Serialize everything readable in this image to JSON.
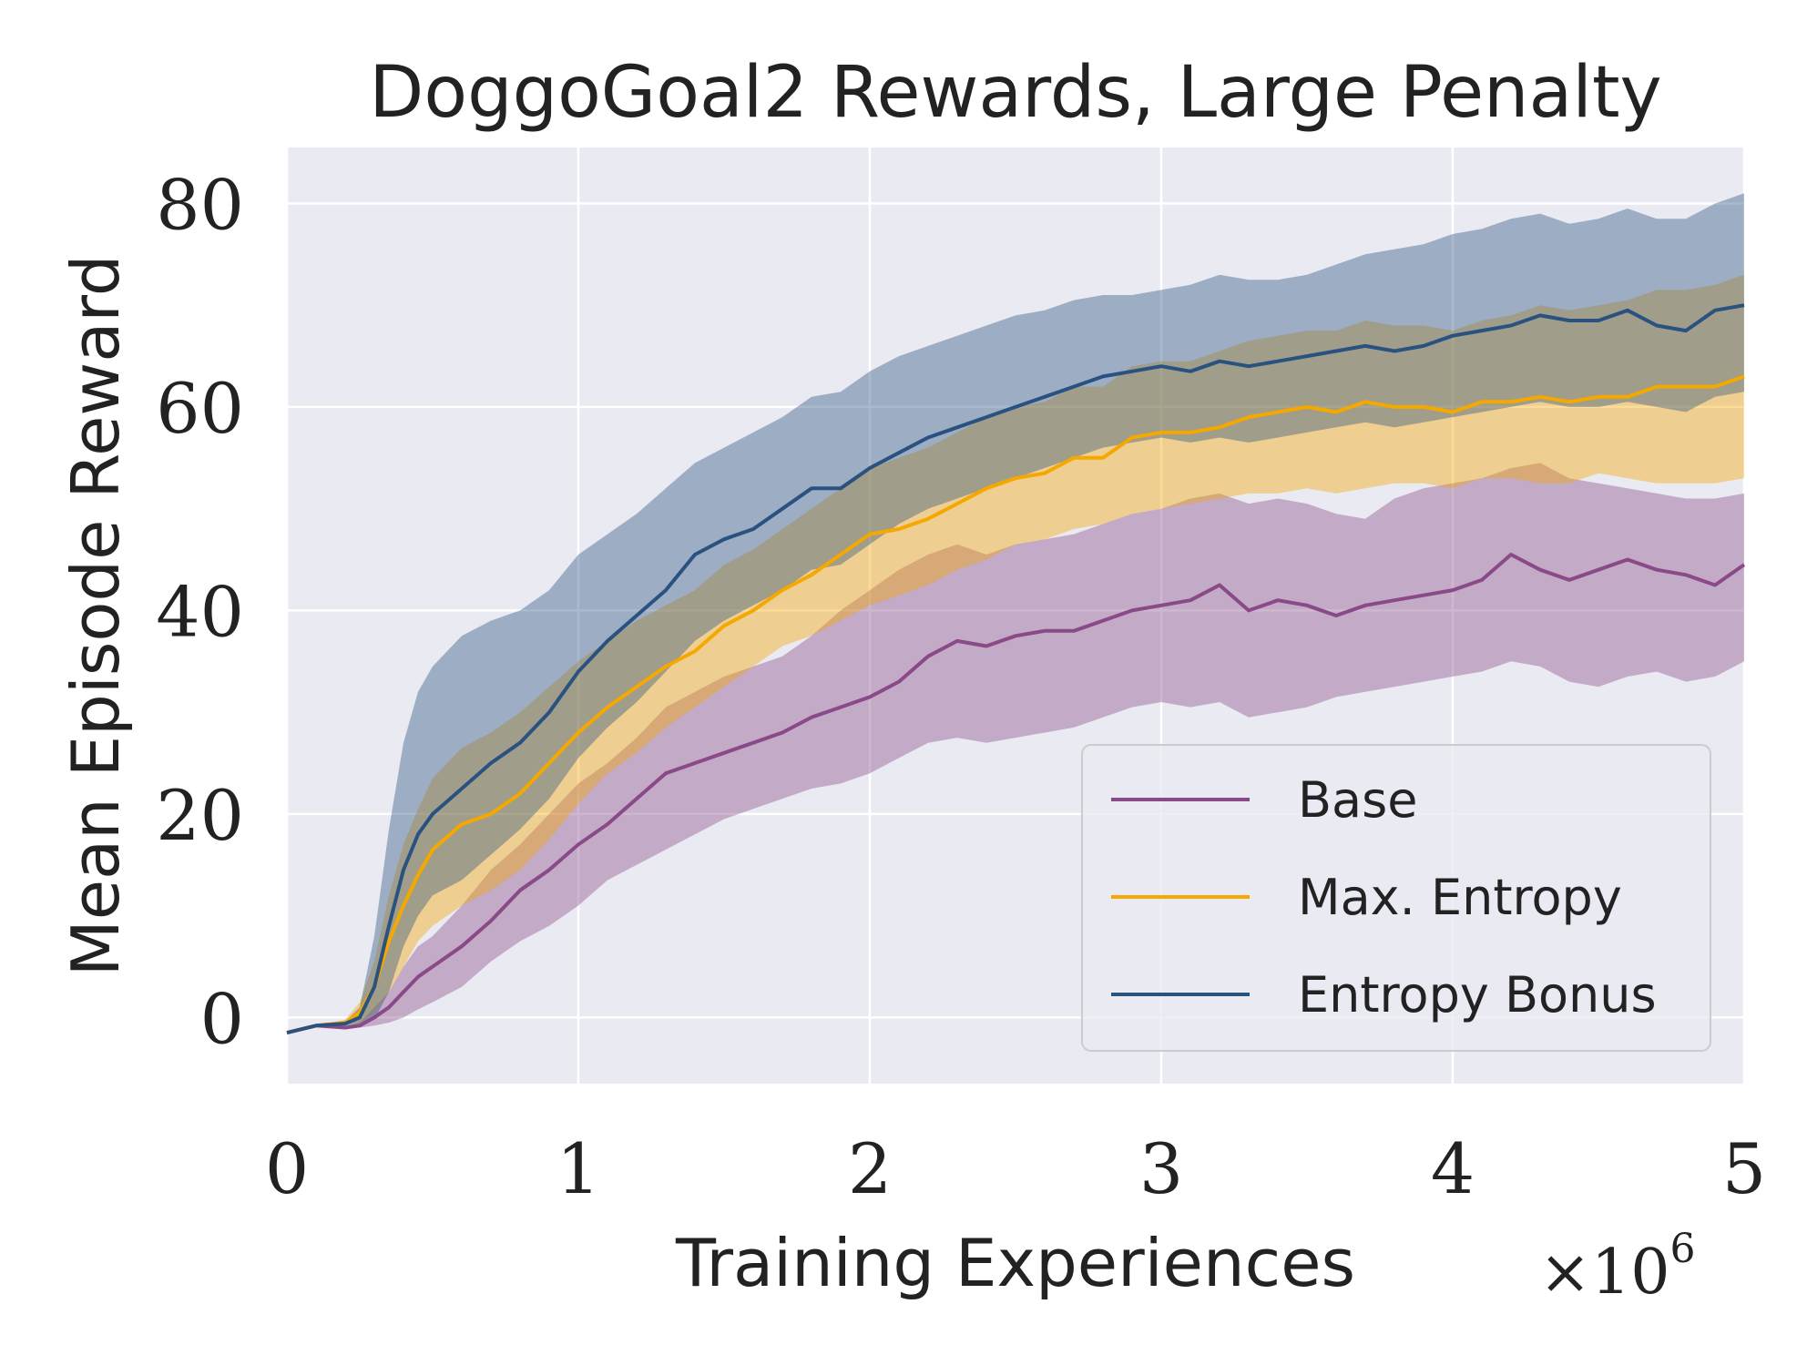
{
  "chart_data": {
    "type": "line",
    "title": "DoggoGoal2 Rewards, Large Penalty",
    "xlabel": "Training Experiences",
    "ylabel": "Mean Episode Reward",
    "x_multiplier_base": "×10",
    "x_multiplier_exp": "6",
    "xlim": [
      0,
      5
    ],
    "ylim": [
      -6.5,
      85.5
    ],
    "xticks": [
      0,
      1,
      2,
      3,
      4,
      5
    ],
    "xtick_labels": [
      "0",
      "1",
      "2",
      "3",
      "4",
      "5"
    ],
    "yticks": [
      0,
      20,
      40,
      60,
      80
    ],
    "ytick_labels": [
      "0",
      "20",
      "40",
      "60",
      "80"
    ],
    "grid": true,
    "legend_position": "lower-right",
    "x": [
      0,
      0.1,
      0.2,
      0.25,
      0.3,
      0.35,
      0.4,
      0.45,
      0.5,
      0.6,
      0.7,
      0.8,
      0.9,
      1.0,
      1.1,
      1.2,
      1.3,
      1.4,
      1.5,
      1.6,
      1.7,
      1.8,
      1.9,
      2.0,
      2.1,
      2.2,
      2.3,
      2.4,
      2.5,
      2.6,
      2.7,
      2.8,
      2.9,
      3.0,
      3.1,
      3.2,
      3.3,
      3.4,
      3.5,
      3.6,
      3.7,
      3.8,
      3.9,
      4.0,
      4.1,
      4.2,
      4.3,
      4.4,
      4.5,
      4.6,
      4.7,
      4.8,
      4.9,
      5.0
    ],
    "series": [
      {
        "name": "Base",
        "color": "#8a4a87",
        "values": [
          -1.5,
          -0.8,
          -1.0,
          -0.8,
          0.0,
          1.0,
          2.5,
          4.0,
          5.0,
          7.0,
          9.5,
          12.5,
          14.5,
          17.0,
          19.0,
          21.5,
          24.0,
          25.0,
          26.0,
          27.0,
          28.0,
          29.5,
          30.5,
          31.5,
          33.0,
          35.5,
          37.0,
          36.5,
          37.5,
          38.0,
          38.0,
          39.0,
          40.0,
          40.5,
          41.0,
          42.5,
          40.0,
          41.0,
          40.5,
          39.5,
          40.5,
          41.0,
          41.5,
          42.0,
          43.0,
          45.5,
          44.0,
          43.0,
          44.0,
          45.0,
          44.0,
          43.5,
          42.5,
          44.5
        ],
        "lower": [
          -1.5,
          -0.8,
          -1.0,
          -1.0,
          -0.8,
          -0.5,
          0.0,
          0.8,
          1.5,
          3.0,
          5.5,
          7.5,
          9.0,
          11.0,
          13.5,
          15.0,
          16.5,
          18.0,
          19.5,
          20.5,
          21.5,
          22.5,
          23.0,
          24.0,
          25.5,
          27.0,
          27.5,
          27.0,
          27.5,
          28.0,
          28.5,
          29.5,
          30.5,
          31.0,
          30.5,
          31.0,
          29.5,
          30.0,
          30.5,
          31.5,
          32.0,
          32.5,
          33.0,
          33.5,
          34.0,
          35.0,
          34.5,
          33.0,
          32.5,
          33.5,
          34.0,
          33.0,
          33.5,
          35.0
        ],
        "upper": [
          -1.5,
          -0.8,
          -0.9,
          -0.5,
          1.0,
          2.5,
          5.0,
          7.0,
          8.0,
          11.0,
          14.5,
          17.0,
          20.0,
          23.0,
          25.0,
          27.5,
          30.5,
          32.0,
          33.5,
          34.5,
          35.5,
          37.5,
          40.0,
          42.0,
          44.0,
          45.5,
          46.5,
          45.5,
          46.5,
          47.0,
          47.5,
          48.5,
          49.5,
          50.0,
          51.0,
          51.5,
          50.5,
          51.0,
          50.5,
          49.5,
          49.0,
          51.0,
          52.0,
          52.5,
          53.0,
          54.0,
          54.5,
          53.0,
          52.5,
          52.0,
          51.5,
          51.0,
          51.0,
          51.5
        ]
      },
      {
        "name": "Max. Entropy",
        "color": "#f5a800",
        "values": [
          -1.5,
          -0.8,
          -0.5,
          0.5,
          3.0,
          7.5,
          11.0,
          14.0,
          16.5,
          19.0,
          20.0,
          22.0,
          25.0,
          28.0,
          30.5,
          32.5,
          34.5,
          36.0,
          38.5,
          40.0,
          42.0,
          43.5,
          45.5,
          47.5,
          48.0,
          49.0,
          50.5,
          52.0,
          53.0,
          53.5,
          55.0,
          55.0,
          57.0,
          57.5,
          57.5,
          58.0,
          59.0,
          59.5,
          60.0,
          59.5,
          60.5,
          60.0,
          60.0,
          59.5,
          60.5,
          60.5,
          61.0,
          60.5,
          61.0,
          61.0,
          62.0,
          62.0,
          62.0,
          63.0
        ],
        "lower": [
          -1.5,
          -0.8,
          -0.8,
          -0.5,
          0.5,
          2.5,
          5.0,
          7.5,
          9.0,
          11.0,
          12.5,
          14.5,
          17.5,
          21.0,
          24.0,
          26.0,
          28.5,
          30.5,
          32.5,
          34.5,
          36.5,
          37.5,
          39.0,
          40.5,
          41.5,
          42.5,
          44.0,
          45.0,
          46.5,
          47.0,
          48.0,
          48.5,
          49.5,
          50.0,
          50.5,
          51.0,
          51.5,
          51.5,
          52.0,
          51.5,
          52.0,
          52.5,
          52.5,
          52.0,
          53.0,
          53.0,
          52.5,
          52.5,
          53.5,
          53.0,
          52.5,
          52.5,
          52.5,
          53.0
        ],
        "upper": [
          -1.5,
          -0.8,
          -0.2,
          1.5,
          5.5,
          12.0,
          17.0,
          20.5,
          23.5,
          26.5,
          28.0,
          30.0,
          32.5,
          35.0,
          37.0,
          39.0,
          40.5,
          42.0,
          44.5,
          46.0,
          48.0,
          50.0,
          52.0,
          54.0,
          55.0,
          56.0,
          57.5,
          59.0,
          60.0,
          60.5,
          62.0,
          62.0,
          64.0,
          64.5,
          64.5,
          65.5,
          66.5,
          67.0,
          67.5,
          67.5,
          68.5,
          68.0,
          68.0,
          67.5,
          68.5,
          69.0,
          70.0,
          69.5,
          70.0,
          70.5,
          71.5,
          71.5,
          72.0,
          73.0
        ]
      },
      {
        "name": "Entropy Bonus",
        "color": "#2a5280",
        "values": [
          -1.5,
          -0.8,
          -0.6,
          0.0,
          3.0,
          9.0,
          14.5,
          18.0,
          20.0,
          22.5,
          25.0,
          27.0,
          30.0,
          34.0,
          37.0,
          39.5,
          42.0,
          45.5,
          47.0,
          48.0,
          50.0,
          52.0,
          52.0,
          54.0,
          55.5,
          57.0,
          58.0,
          59.0,
          60.0,
          61.0,
          62.0,
          63.0,
          63.5,
          64.0,
          63.5,
          64.5,
          64.0,
          64.5,
          65.0,
          65.5,
          66.0,
          65.5,
          66.0,
          67.0,
          67.5,
          68.0,
          69.0,
          68.5,
          68.5,
          69.5,
          68.0,
          67.5,
          69.5,
          70.0
        ],
        "lower": [
          -1.5,
          -0.8,
          -0.8,
          -0.7,
          -0.2,
          2.5,
          7.0,
          10.0,
          12.0,
          13.5,
          16.0,
          18.5,
          21.5,
          25.5,
          28.5,
          31.0,
          34.0,
          37.0,
          39.0,
          40.5,
          42.0,
          44.0,
          44.5,
          46.5,
          48.5,
          50.0,
          51.0,
          52.0,
          53.0,
          54.0,
          55.0,
          56.0,
          56.5,
          57.0,
          56.5,
          57.0,
          56.5,
          57.0,
          57.5,
          58.0,
          58.5,
          58.0,
          58.5,
          59.0,
          59.5,
          60.0,
          60.5,
          60.0,
          60.0,
          60.5,
          60.0,
          59.5,
          61.0,
          61.5
        ],
        "upper": [
          -1.5,
          -0.8,
          -0.4,
          1.0,
          8.0,
          18.5,
          27.0,
          32.0,
          34.5,
          37.5,
          39.0,
          40.0,
          42.0,
          45.5,
          47.5,
          49.5,
          52.0,
          54.5,
          56.0,
          57.5,
          59.0,
          61.0,
          61.5,
          63.5,
          65.0,
          66.0,
          67.0,
          68.0,
          69.0,
          69.5,
          70.5,
          71.0,
          71.0,
          71.5,
          72.0,
          73.0,
          72.5,
          72.5,
          73.0,
          74.0,
          75.0,
          75.5,
          76.0,
          77.0,
          77.5,
          78.5,
          79.0,
          78.0,
          78.5,
          79.5,
          78.5,
          78.5,
          80.0,
          81.0
        ]
      }
    ]
  }
}
